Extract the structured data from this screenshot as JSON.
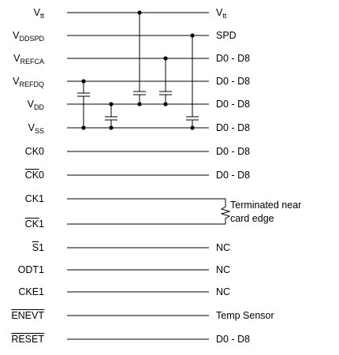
{
  "left_labels": [
    {
      "base": "V",
      "sub": "tt",
      "rest": "",
      "overline": false
    },
    {
      "base": "V",
      "sub": "DDSPD",
      "rest": "",
      "overline": false
    },
    {
      "base": "V",
      "sub": "REFCA",
      "rest": "",
      "overline": false
    },
    {
      "base": "V",
      "sub": "REFDQ",
      "rest": "",
      "overline": false
    },
    {
      "base": "V",
      "sub": "DD",
      "rest": "",
      "overline": false
    },
    {
      "base": "V",
      "sub": "SS",
      "rest": "",
      "overline": false
    },
    {
      "base": "CK0",
      "sub": "",
      "rest": "",
      "overline": false
    },
    {
      "base": "CK",
      "sub": "",
      "rest": "0",
      "overline": true
    },
    {
      "base": "CK1",
      "sub": "",
      "rest": "",
      "overline": false
    },
    {
      "base": "CK",
      "sub": "",
      "rest": "1",
      "overline": true
    },
    {
      "base": "S",
      "sub": "",
      "rest": "1",
      "overline": true
    },
    {
      "base": "ODT1",
      "sub": "",
      "rest": "",
      "overline": false
    },
    {
      "base": "CKE1",
      "sub": "",
      "rest": "",
      "overline": false
    },
    {
      "base": "ENEVT",
      "sub": "",
      "rest": "",
      "overline": true
    },
    {
      "base": "RESET",
      "sub": "",
      "rest": "",
      "overline": true
    }
  ],
  "right_labels": [
    {
      "base": "V",
      "sub": "tt"
    },
    {
      "base": "SPD",
      "sub": ""
    },
    {
      "base": "D0 - D8",
      "sub": ""
    },
    {
      "base": "D0 - D8",
      "sub": ""
    },
    {
      "base": "D0 - D8",
      "sub": ""
    },
    {
      "base": "D0 - D8",
      "sub": ""
    },
    {
      "base": "D0 - D8",
      "sub": ""
    },
    {
      "base": "D0 - D8",
      "sub": ""
    },
    {
      "base": "",
      "sub": ""
    },
    {
      "base": "",
      "sub": ""
    },
    {
      "base": "NC",
      "sub": ""
    },
    {
      "base": "NC",
      "sub": ""
    },
    {
      "base": "NC",
      "sub": ""
    },
    {
      "base": "Temp Sensor",
      "sub": ""
    },
    {
      "base": "D0 - D8",
      "sub": ""
    }
  ],
  "termination_note": {
    "line1": "Terminated near",
    "line2": "card edge"
  }
}
